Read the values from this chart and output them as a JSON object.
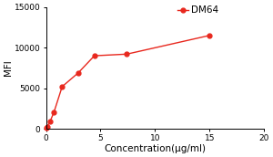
{
  "x": [
    0.04,
    0.12,
    0.37,
    0.74,
    1.48,
    2.96,
    4.44,
    7.41,
    15.0
  ],
  "y": [
    80,
    300,
    900,
    2100,
    5200,
    6900,
    9000,
    9200,
    11500
  ],
  "line_color": "#e8281e",
  "marker": "o",
  "marker_size": 3.5,
  "legend_label": "DM64",
  "xlabel": "Concentration(μg/ml)",
  "ylabel": "MFI",
  "xlim": [
    0,
    20
  ],
  "ylim": [
    0,
    15000
  ],
  "xticks": [
    0,
    5,
    10,
    15,
    20
  ],
  "yticks": [
    0,
    5000,
    10000,
    15000
  ],
  "background_color": "#ffffff",
  "xlabel_fontsize": 7.5,
  "ylabel_fontsize": 7.5,
  "tick_fontsize": 6.5,
  "legend_fontsize": 7.5
}
